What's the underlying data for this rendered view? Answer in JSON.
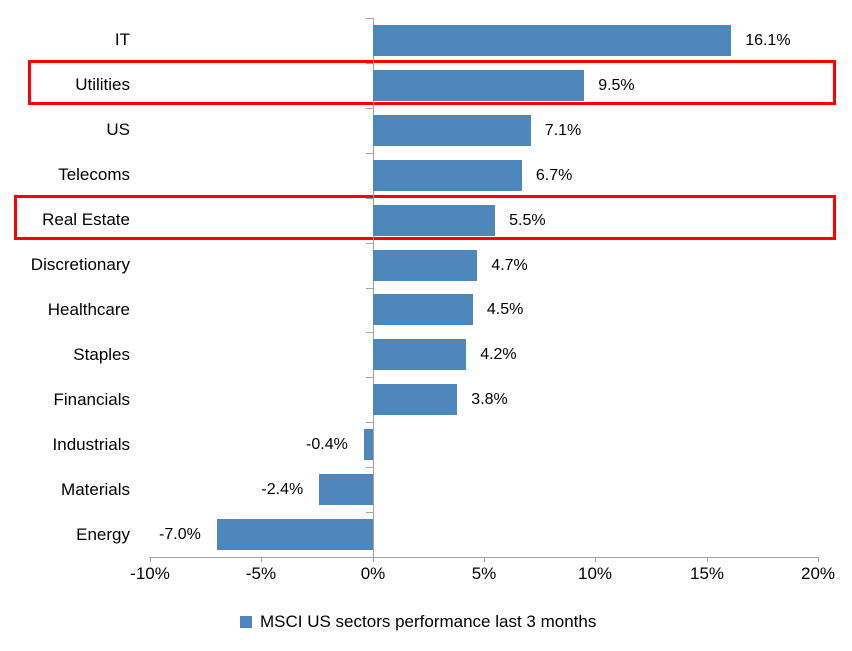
{
  "chart_data": {
    "type": "bar",
    "orientation": "horizontal",
    "title": "",
    "categories": [
      "IT",
      "Utilities",
      "US",
      "Telecoms",
      "Real Estate",
      "Discretionary",
      "Healthcare",
      "Staples",
      "Financials",
      "Industrials",
      "Materials",
      "Energy"
    ],
    "values": [
      16.1,
      9.5,
      7.1,
      6.7,
      5.5,
      4.7,
      4.5,
      4.2,
      3.8,
      -0.4,
      -2.4,
      -7.0
    ],
    "data_labels": [
      "16.1%",
      "9.5%",
      "7.1%",
      "6.7%",
      "5.5%",
      "4.7%",
      "4.5%",
      "4.2%",
      "3.8%",
      "-0.4%",
      "-2.4%",
      "-7.0%"
    ],
    "highlighted_categories": [
      "Utilities",
      "Real Estate"
    ],
    "x_ticks": [
      {
        "label": "-10%",
        "value": -10
      },
      {
        "label": "-5%",
        "value": -5
      },
      {
        "label": "0%",
        "value": 0
      },
      {
        "label": "5%",
        "value": 5
      },
      {
        "label": "10%",
        "value": 10
      },
      {
        "label": "15%",
        "value": 15
      },
      {
        "label": "20%",
        "value": 20
      }
    ],
    "xlim": [
      -10,
      20
    ],
    "grid": false,
    "legend": {
      "position": "bottom",
      "label": "MSCI US sectors performance last 3 months",
      "marker_color": "#4e87bc"
    },
    "bar_color": "#4e87bc",
    "axis_color": "#a3a3a3",
    "highlight_color": "#ff0000"
  }
}
